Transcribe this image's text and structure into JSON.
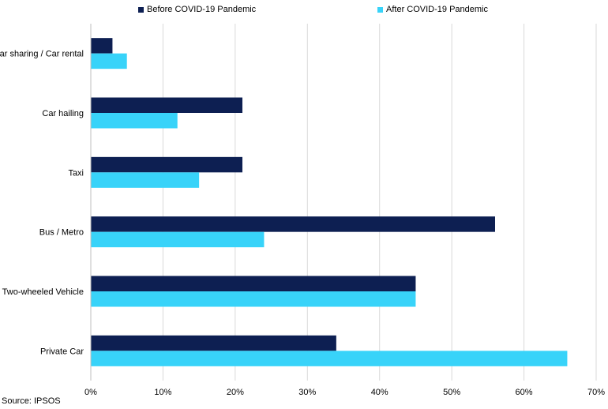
{
  "chart_data": {
    "type": "bar",
    "orientation": "horizontal",
    "categories": [
      "Car sharing / Car rental",
      "Car hailing",
      "Taxi",
      "Bus / Metro",
      "Two-wheeled Vehicle",
      "Private Car"
    ],
    "series": [
      {
        "name": "Before COVID-19 Pandemic",
        "color": "#0d1f52",
        "values": [
          3,
          21,
          21,
          56,
          45,
          34
        ]
      },
      {
        "name": "After COVID-19 Pandemic",
        "color": "#38d3f9",
        "values": [
          5,
          12,
          15,
          24,
          45,
          66
        ]
      }
    ],
    "xlim": [
      0,
      70
    ],
    "xticks": [
      "0%",
      "10%",
      "20%",
      "30%",
      "40%",
      "50%",
      "60%",
      "70%"
    ],
    "grid": true,
    "legend_position": "top"
  },
  "source": "Source: IPSOS"
}
